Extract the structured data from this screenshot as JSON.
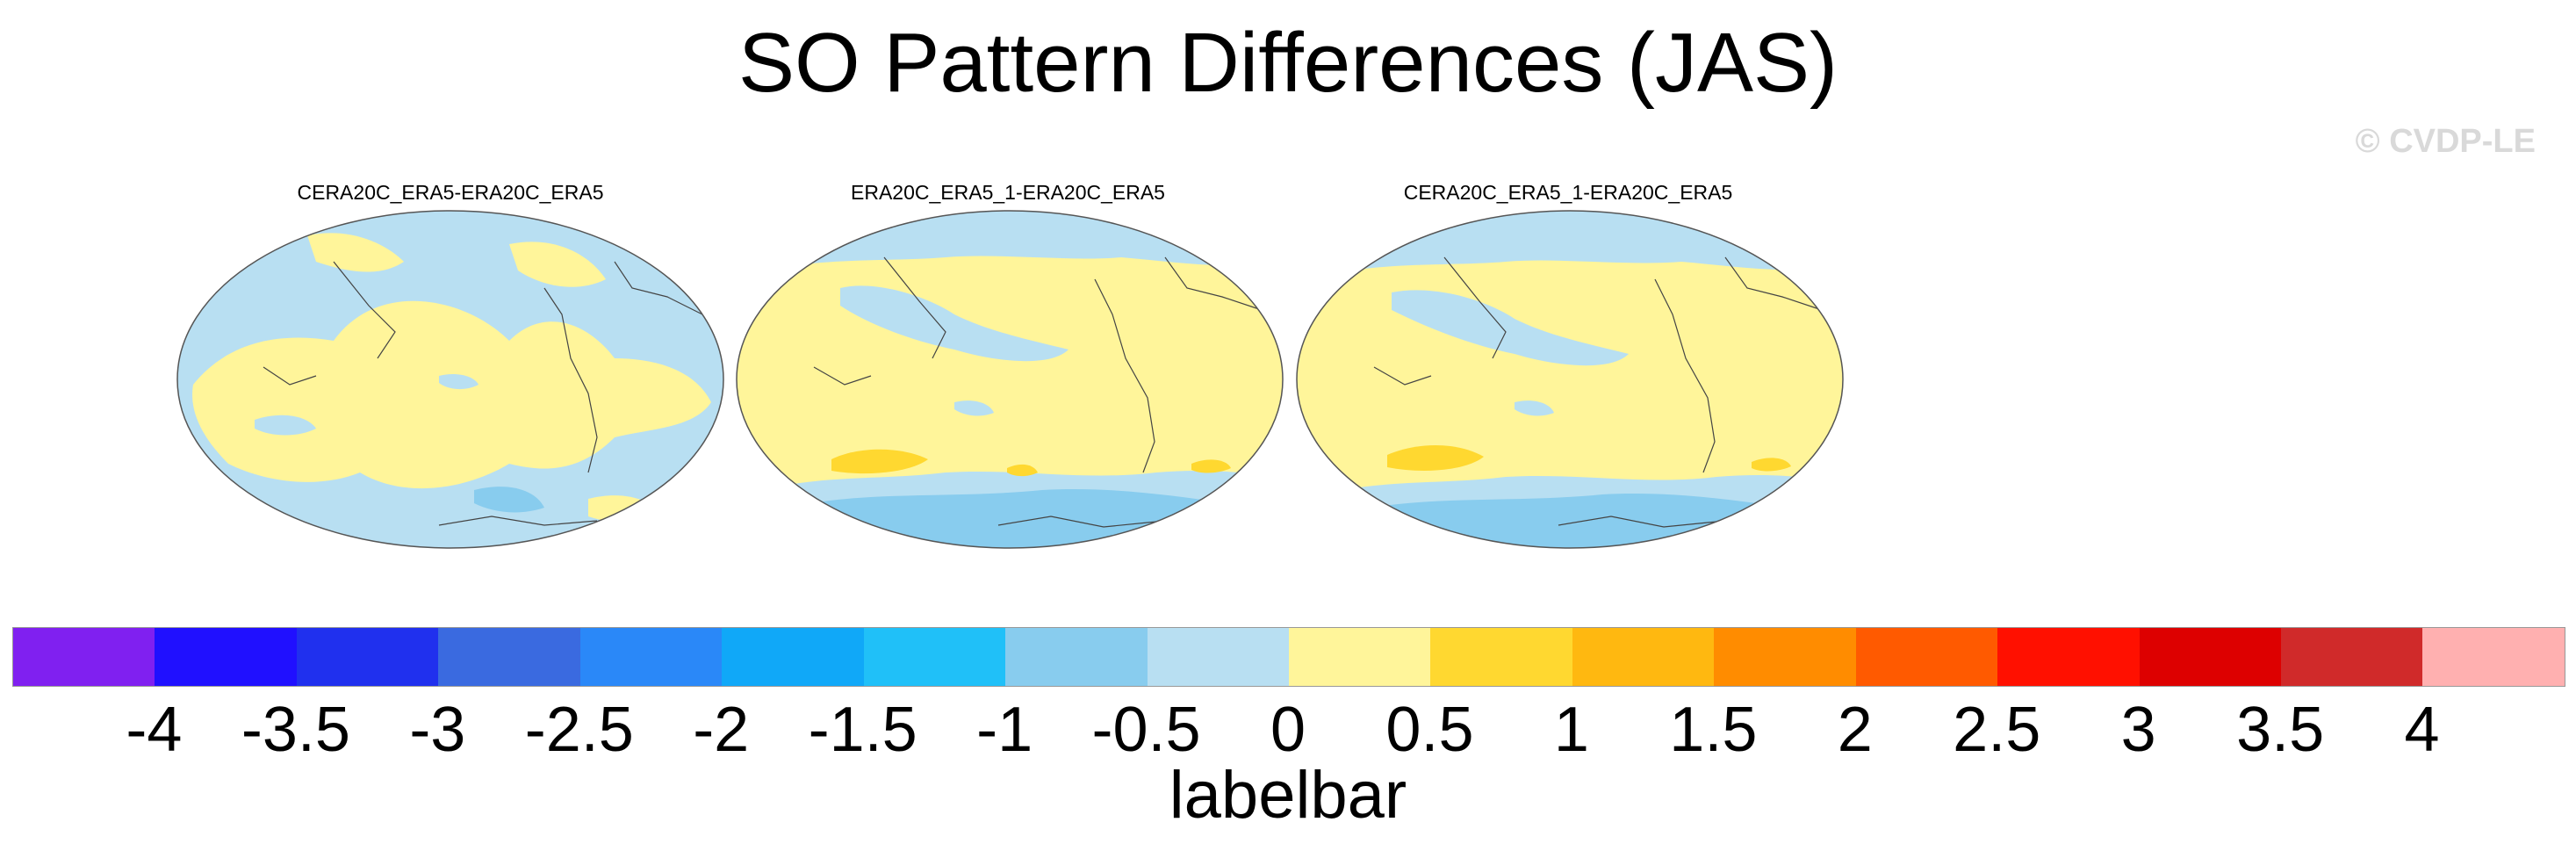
{
  "title": "SO Pattern Differences (JAS)",
  "watermark": "© CVDP-LE",
  "panels": [
    {
      "label": "CERA20C_ERA5-ERA20C_ERA5"
    },
    {
      "label": "ERA20C_ERA5_1-ERA20C_ERA5"
    },
    {
      "label": "CERA20C_ERA5_1-ERA20C_ERA5"
    }
  ],
  "colorbar": {
    "label": "labelbar",
    "ticks": [
      "-4",
      "-3.5",
      "-3",
      "-2.5",
      "-2",
      "-1.5",
      "-1",
      "-0.5",
      "0",
      "0.5",
      "1",
      "1.5",
      "2",
      "2.5",
      "3",
      "3.5",
      "4"
    ],
    "colors": [
      "#8020f0",
      "#2010ff",
      "#2030ee",
      "#3a6ae0",
      "#2a88f8",
      "#10a8f8",
      "#20c0f8",
      "#88ccee",
      "#b8dff2",
      "#fff59a",
      "#ffd830",
      "#ffb810",
      "#ff8c00",
      "#ff5a00",
      "#ff1000",
      "#dd0000",
      "#d02a2a",
      "#ffb0b0"
    ]
  }
}
